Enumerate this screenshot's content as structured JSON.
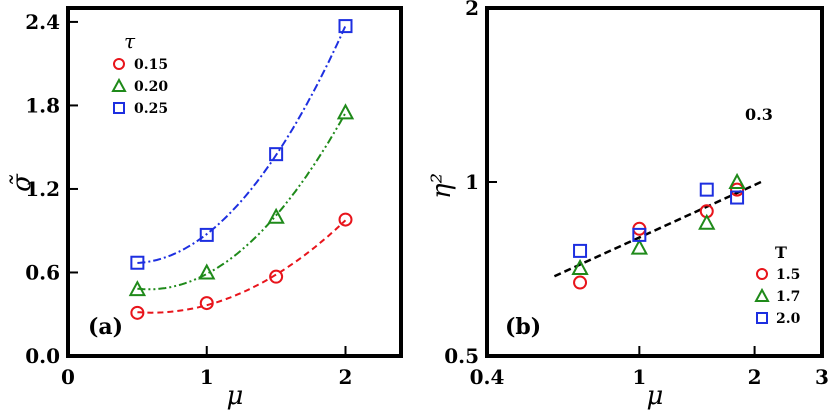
{
  "chart_data": [
    {
      "type": "scatter",
      "panel_label": "(a)",
      "xlabel": "μ",
      "ylabel": "σ̃",
      "xlim": [
        0,
        2.4
      ],
      "ylim": [
        0,
        2.5
      ],
      "xticks": [
        "0",
        "1",
        "2"
      ],
      "yticks": [
        "0.0",
        "0.6",
        "1.2",
        "1.8",
        "2.4"
      ],
      "legend": {
        "title": "τ",
        "placement": "top-left"
      },
      "series": [
        {
          "name": "0.15",
          "marker": "circle",
          "color": "#e8141b",
          "x": [
            0.5,
            1.0,
            1.5,
            2.0
          ],
          "y": [
            0.31,
            0.38,
            0.57,
            0.98
          ]
        },
        {
          "name": "0.20",
          "marker": "triangle",
          "color": "#1f8a1a",
          "x": [
            0.5,
            1.0,
            1.5,
            2.0
          ],
          "y": [
            0.48,
            0.6,
            1.0,
            1.75
          ]
        },
        {
          "name": "0.25",
          "marker": "square",
          "color": "#1d2fe0",
          "x": [
            0.5,
            1.0,
            1.5,
            2.0
          ],
          "y": [
            0.67,
            0.87,
            1.45,
            2.37
          ]
        }
      ]
    },
    {
      "type": "scatter",
      "panel_label": "(b)",
      "xlabel": "μ",
      "ylabel": "η²",
      "xscale": "log",
      "yscale": "log",
      "xlim": [
        0.4,
        3
      ],
      "ylim": [
        0.5,
        2
      ],
      "xticks": [
        "0.4",
        "1",
        "2",
        "3"
      ],
      "yticks": [
        "0.5",
        "1",
        "2"
      ],
      "legend": {
        "title": "T",
        "placement": "bottom-right"
      },
      "fit_line": {
        "label": "0.3",
        "slope": 0.3,
        "x": [
          0.6,
          2.1
        ],
        "y": [
          0.687,
          1.003
        ]
      },
      "series": [
        {
          "name": "1.5",
          "marker": "circle",
          "color": "#e8141b",
          "x": [
            0.7,
            1.0,
            1.5,
            1.8
          ],
          "y": [
            0.67,
            0.83,
            0.89,
            0.97
          ]
        },
        {
          "name": "1.7",
          "marker": "triangle",
          "color": "#1f8a1a",
          "x": [
            0.7,
            1.0,
            1.5,
            1.8
          ],
          "y": [
            0.71,
            0.77,
            0.85,
            1.0
          ]
        },
        {
          "name": "2.0",
          "marker": "square",
          "color": "#1d2fe0",
          "x": [
            0.7,
            1.0,
            1.5,
            1.8
          ],
          "y": [
            0.76,
            0.81,
            0.97,
            0.94
          ]
        }
      ]
    }
  ]
}
